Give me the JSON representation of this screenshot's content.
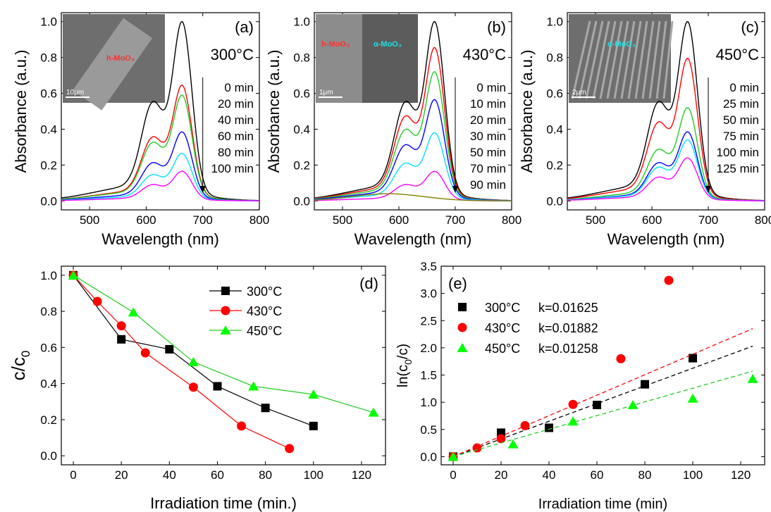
{
  "chart_data": [
    {
      "id": "a",
      "type": "line",
      "panel_label": "(a)",
      "temperature": "300°C",
      "xlabel": "Wavelength (nm)",
      "ylabel": "Absorbance (a.u.)",
      "xlim": [
        450,
        800
      ],
      "ylim": [
        -0.05,
        1.05
      ],
      "xticks": [
        500,
        600,
        700,
        800
      ],
      "yticks": [
        0.0,
        0.2,
        0.4,
        0.6,
        0.8,
        1.0
      ],
      "inset": {
        "label": "h-MoO₃",
        "scale": "10μm"
      },
      "legend_times": [
        "0 min",
        "20 min",
        "40 min",
        "60 min",
        "80 min",
        "100 min"
      ],
      "peak_wavelength": 664,
      "series": [
        {
          "name": "0 min",
          "color": "#000000",
          "peak": 1.0
        },
        {
          "name": "20 min",
          "color": "#ff0000",
          "peak": 0.645
        },
        {
          "name": "40 min",
          "color": "#22cc22",
          "peak": 0.59
        },
        {
          "name": "60 min",
          "color": "#0000ff",
          "peak": 0.385
        },
        {
          "name": "80 min",
          "color": "#00e0ff",
          "peak": 0.265
        },
        {
          "name": "100 min",
          "color": "#ff00ff",
          "peak": 0.165
        }
      ]
    },
    {
      "id": "b",
      "type": "line",
      "panel_label": "(b)",
      "temperature": "430°C",
      "xlabel": "Wavelength (nm)",
      "ylabel": "Absorbance (a.u.)",
      "xlim": [
        450,
        800
      ],
      "ylim": [
        -0.05,
        1.05
      ],
      "xticks": [
        500,
        600,
        700,
        800
      ],
      "yticks": [
        0.0,
        0.2,
        0.4,
        0.6,
        0.8,
        1.0
      ],
      "inset": {
        "label_left": "h-MoO₃",
        "label_right": "α-MoO₃",
        "scale": "1μm"
      },
      "legend_times": [
        "0 min",
        "10 min",
        "20 min",
        "30 min",
        "50 min",
        "70 min",
        "90 min"
      ],
      "peak_wavelength": 664,
      "series": [
        {
          "name": "0 min",
          "color": "#000000",
          "peak": 1.0
        },
        {
          "name": "10 min",
          "color": "#ff0000",
          "peak": 0.855
        },
        {
          "name": "20 min",
          "color": "#22cc22",
          "peak": 0.72
        },
        {
          "name": "30 min",
          "color": "#0000ff",
          "peak": 0.565
        },
        {
          "name": "50 min",
          "color": "#00e0ff",
          "peak": 0.38
        },
        {
          "name": "70 min",
          "color": "#ff00ff",
          "peak": 0.165
        },
        {
          "name": "90 min",
          "color": "#808000",
          "peak": 0.04
        }
      ]
    },
    {
      "id": "c",
      "type": "line",
      "panel_label": "(c)",
      "temperature": "450°C",
      "xlabel": "Wavelength (nm)",
      "ylabel": "Absorbance (a.u.)",
      "xlim": [
        450,
        800
      ],
      "ylim": [
        -0.05,
        1.05
      ],
      "xticks": [
        500,
        600,
        700,
        800
      ],
      "yticks": [
        0.0,
        0.2,
        0.4,
        0.6,
        0.8,
        1.0
      ],
      "inset": {
        "label": "α-MoO₃",
        "scale": "2μm"
      },
      "legend_times": [
        "0 min",
        "25 min",
        "50 min",
        "75 min",
        "100 min",
        "125 min"
      ],
      "peak_wavelength": 664,
      "series": [
        {
          "name": "0 min",
          "color": "#000000",
          "peak": 1.0
        },
        {
          "name": "25 min",
          "color": "#ff0000",
          "peak": 0.795
        },
        {
          "name": "50 min",
          "color": "#22cc22",
          "peak": 0.52
        },
        {
          "name": "75 min",
          "color": "#0000ff",
          "peak": 0.385
        },
        {
          "name": "100 min",
          "color": "#00e0ff",
          "peak": 0.34
        },
        {
          "name": "125 min",
          "color": "#ff00ff",
          "peak": 0.24
        }
      ]
    },
    {
      "id": "d",
      "type": "line",
      "panel_label": "(d)",
      "xlabel": "Irradiation time (min.)",
      "ylabel": "c/c",
      "ylabel_sub": "0",
      "xlim": [
        -5,
        130
      ],
      "ylim": [
        -0.05,
        1.05
      ],
      "xticks": [
        0,
        20,
        40,
        60,
        80,
        100,
        120
      ],
      "yticks": [
        0.0,
        0.2,
        0.4,
        0.6,
        0.8,
        1.0
      ],
      "legend_position": "top-right",
      "series": [
        {
          "name": "300°C",
          "color": "#000000",
          "marker": "square",
          "x": [
            0,
            20,
            40,
            60,
            80,
            100
          ],
          "y": [
            1.0,
            0.645,
            0.59,
            0.385,
            0.265,
            0.165
          ]
        },
        {
          "name": "430°C",
          "color": "#ff0000",
          "marker": "circle",
          "x": [
            0,
            10,
            20,
            30,
            50,
            70,
            90
          ],
          "y": [
            1.0,
            0.855,
            0.72,
            0.57,
            0.38,
            0.165,
            0.04
          ]
        },
        {
          "name": "450°C",
          "color": "#00ff00",
          "marker": "triangle",
          "x": [
            0,
            25,
            50,
            75,
            100,
            125
          ],
          "y": [
            1.0,
            0.795,
            0.52,
            0.385,
            0.34,
            0.24
          ]
        }
      ]
    },
    {
      "id": "e",
      "type": "scatter",
      "panel_label": "(e)",
      "xlabel": "Irradiation time (min)",
      "ylabel": "ln(c",
      "ylabel_sub": "0",
      "ylabel_end": "/c)",
      "xlim": [
        -5,
        130
      ],
      "ylim": [
        -0.15,
        3.5
      ],
      "xticks": [
        0,
        20,
        40,
        60,
        80,
        100,
        120
      ],
      "yticks": [
        0.0,
        0.5,
        1.0,
        1.5,
        2.0,
        2.5,
        3.0,
        3.5
      ],
      "legend_position": "top-left",
      "series": [
        {
          "name": "300°C",
          "k_label": "k=0.01625",
          "k": 0.01625,
          "color": "#000000",
          "marker": "square",
          "x": [
            0,
            20,
            40,
            60,
            80,
            100
          ],
          "y": [
            0.0,
            0.44,
            0.53,
            0.95,
            1.33,
            1.81
          ]
        },
        {
          "name": "430°C",
          "k_label": "k=0.01882",
          "k": 0.01882,
          "color": "#ff0000",
          "marker": "circle",
          "x": [
            0,
            10,
            20,
            30,
            50,
            70,
            90
          ],
          "y": [
            0.0,
            0.16,
            0.33,
            0.57,
            0.96,
            1.8,
            3.24
          ]
        },
        {
          "name": "450°C",
          "k_label": "k=0.01258",
          "k": 0.01258,
          "color": "#00ff00",
          "marker": "triangle",
          "x": [
            0,
            25,
            50,
            75,
            100,
            125
          ],
          "y": [
            0.0,
            0.23,
            0.65,
            0.95,
            1.07,
            1.43
          ]
        }
      ]
    }
  ]
}
